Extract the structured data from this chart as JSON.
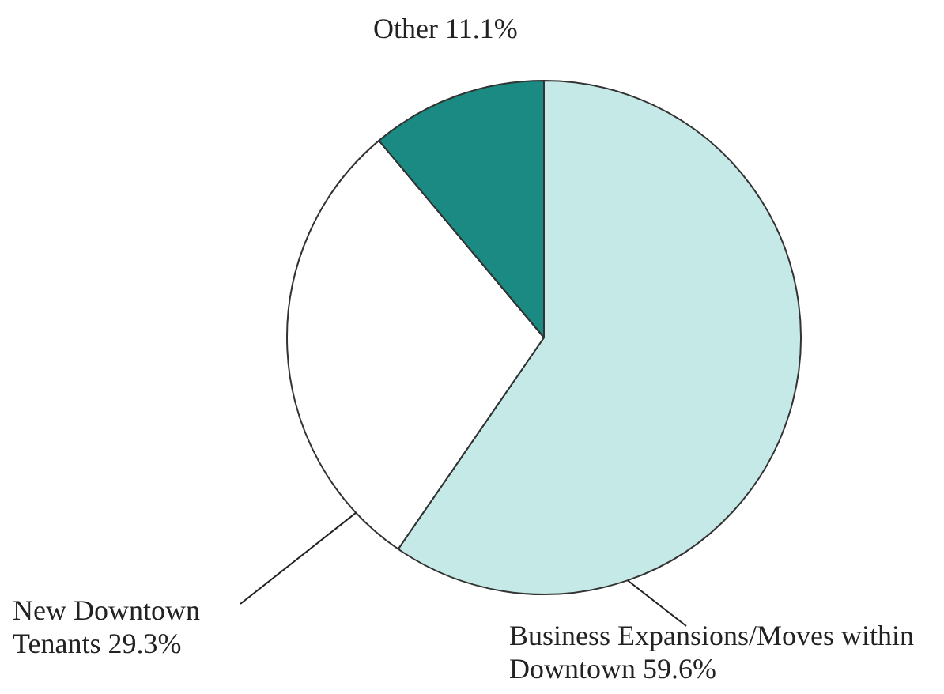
{
  "chart_data": {
    "type": "pie",
    "categories": [
      "Business Expansions/Moves within Downtown",
      "New Downtown Tenants",
      "Other"
    ],
    "values": [
      59.6,
      29.3,
      11.1
    ],
    "value_labels": [
      "59.6%",
      "29.3%",
      "11.1%"
    ],
    "colors": [
      "#c4e9e7",
      "#ffffff",
      "#1b8a82"
    ],
    "legend": false
  }
}
